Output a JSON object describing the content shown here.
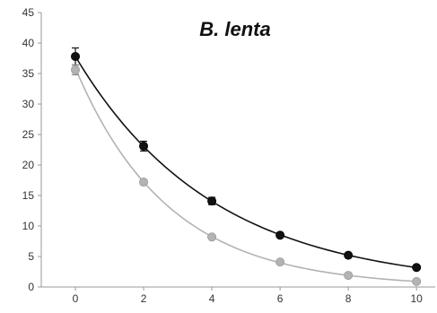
{
  "chart_data": {
    "type": "scatter",
    "title": "B. lenta",
    "xlabel": "",
    "ylabel": "",
    "xlim": [
      -1,
      10.6
    ],
    "ylim": [
      0,
      45
    ],
    "x_ticks": [
      0,
      2,
      4,
      6,
      8,
      10
    ],
    "y_ticks": [
      0,
      5,
      10,
      15,
      20,
      25,
      30,
      35,
      40,
      45
    ],
    "grid": false,
    "legend": "none",
    "series": [
      {
        "color": "#111111",
        "x": [
          0,
          2,
          4,
          6,
          8,
          10
        ],
        "y": [
          37.8,
          23.1,
          14.1,
          8.5,
          5.2,
          3.2
        ],
        "err": [
          1.4,
          0.8,
          0.6,
          0.3,
          0.3,
          0.2
        ],
        "fit": "exponential"
      },
      {
        "color": "#b3b3b3",
        "x": [
          0,
          2,
          4,
          6,
          8,
          10
        ],
        "y": [
          35.6,
          17.2,
          8.2,
          4.1,
          1.9,
          0.9
        ],
        "err": [
          0.8,
          0.4,
          0.3,
          0.2,
          0.2,
          0.1
        ],
        "fit": "exponential"
      }
    ]
  }
}
